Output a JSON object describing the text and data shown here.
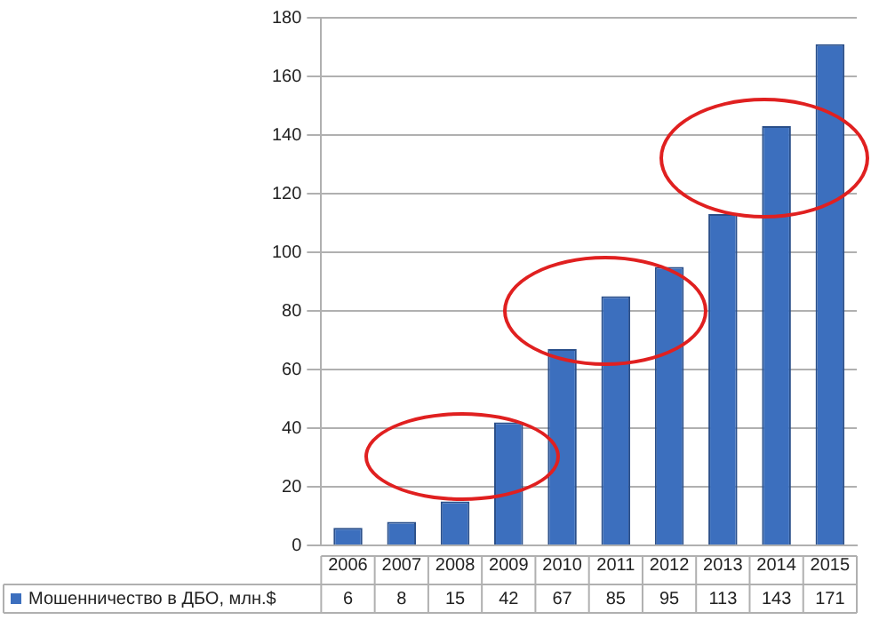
{
  "chart_data": {
    "type": "bar",
    "categories": [
      "2006",
      "2007",
      "2008",
      "2009",
      "2010",
      "2011",
      "2012",
      "2013",
      "2014",
      "2015"
    ],
    "series": [
      {
        "name": "Мошенничество в ДБО, млн.$",
        "color": "#3c6fbe",
        "values": [
          6,
          8,
          15,
          42,
          67,
          85,
          95,
          113,
          143,
          171
        ]
      }
    ],
    "ylim": [
      0,
      180
    ],
    "yticks": [
      0,
      20,
      40,
      60,
      80,
      100,
      120,
      140,
      160,
      180
    ],
    "grid": "y",
    "legend": "bottom left",
    "data_labels": true
  }
}
